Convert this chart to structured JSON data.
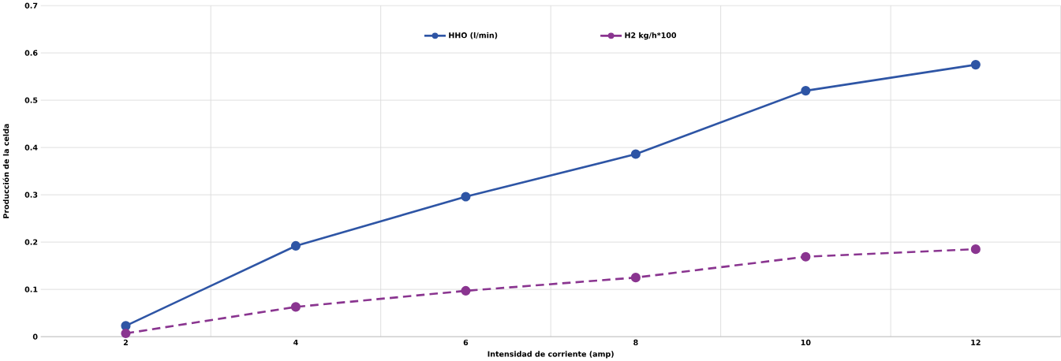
{
  "chart_data": {
    "type": "line",
    "xlabel": "Intensidad de corriente (amp)",
    "ylabel": "Producción de la celda",
    "x": [
      2,
      4,
      6,
      8,
      10,
      12
    ],
    "series": [
      {
        "name": "HHO (l/min)",
        "color": "#2e55a5",
        "values": [
          0.023,
          0.192,
          0.296,
          0.386,
          0.52,
          0.575
        ],
        "line_style": "solid"
      },
      {
        "name": "H2 kg/h*100",
        "color": "#8a3590",
        "values": [
          0.007,
          0.063,
          0.097,
          0.125,
          0.169,
          0.185
        ],
        "line_style": "dashed"
      }
    ],
    "xlim": [
      1,
      13
    ],
    "xticks": [
      2,
      {
        "value": 3,
        "label": null
      },
      4,
      {
        "value": 5,
        "label": null
      },
      6,
      {
        "value": 7,
        "label": null
      },
      8,
      {
        "value": 9,
        "label": null
      },
      10,
      {
        "value": 11,
        "label": null
      },
      12,
      {
        "value": 13,
        "label": null
      }
    ],
    "ylim": [
      0,
      0.7
    ],
    "yticks": [
      0,
      0.1,
      0.2,
      0.3,
      0.4,
      0.5,
      0.6,
      0.7
    ],
    "grid": true,
    "legend": "top",
    "marker": "circle"
  }
}
